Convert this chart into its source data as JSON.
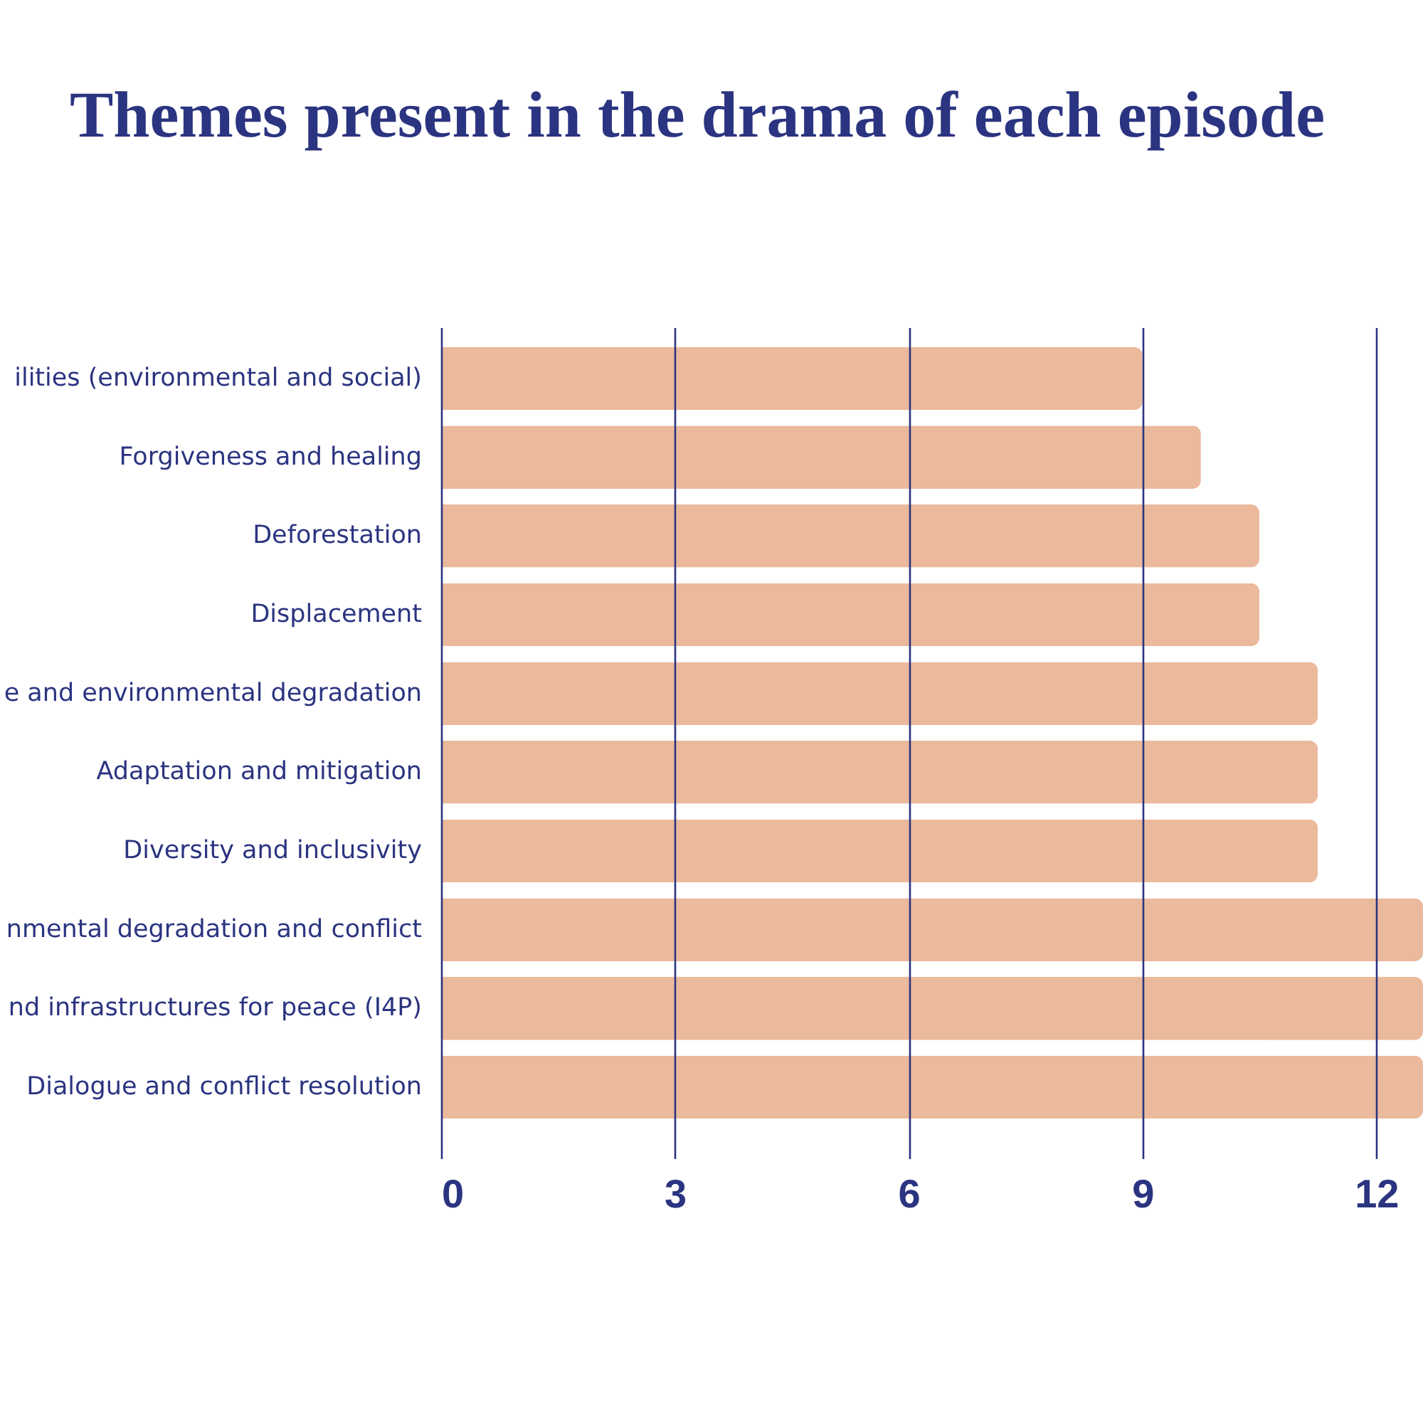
{
  "chart_data": {
    "type": "bar",
    "orientation": "horizontal",
    "title": "Themes present in the drama of each episode",
    "categories": [
      "ilities (environmental and social)",
      "Forgiveness and healing",
      "Deforestation",
      "Displacement",
      "e and environmental degradation",
      "Adaptation and mitigation",
      "Diversity and inclusivity",
      "nmental degradation and conflict",
      "nd infrastructures for peace (I4P)",
      "Dialogue and conflict resolution"
    ],
    "values": [
      9,
      9.75,
      10.5,
      10.5,
      11.25,
      11.25,
      11.25,
      12.6,
      12.6,
      12.6
    ],
    "color": "#ebb99b",
    "xlim": [
      0,
      12.6
    ],
    "xticks": [
      0,
      3,
      6,
      9,
      12
    ],
    "grid": "x"
  }
}
